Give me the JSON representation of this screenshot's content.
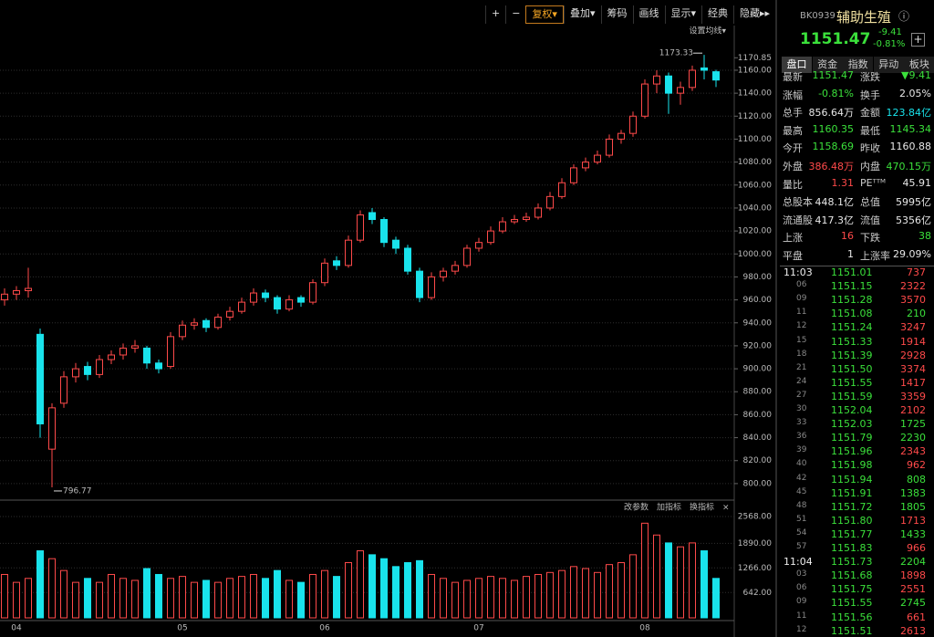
{
  "toolbar": {
    "buttons": [
      "+",
      "−",
      "复权▾",
      "叠加▾",
      "筹码",
      "画线",
      "显示▾",
      "经典",
      "隐藏▸▸"
    ]
  },
  "chart_data": {
    "type": "candlestick",
    "setting_label": "设置均线▾",
    "up_color": "#ff4a4a",
    "down_color": "#19e3ec",
    "max_label": "1173.33",
    "min_label": "796.77",
    "categories": [
      null,
      "04",
      null,
      null,
      null,
      null,
      null,
      null,
      null,
      null,
      null,
      null,
      null,
      null,
      null,
      "05",
      null,
      null,
      null,
      null,
      null,
      null,
      null,
      null,
      null,
      null,
      null,
      "06",
      null,
      null,
      null,
      null,
      null,
      null,
      null,
      null,
      null,
      null,
      null,
      null,
      "07",
      null,
      null,
      null,
      null,
      null,
      null,
      null,
      null,
      null,
      null,
      null,
      null,
      null,
      "08",
      null,
      null,
      null,
      null,
      null,
      null
    ],
    "candles": [
      [
        960,
        970,
        955,
        965
      ],
      [
        965,
        972,
        960,
        968
      ],
      [
        968,
        988,
        962,
        970
      ],
      [
        930,
        935,
        840,
        852
      ],
      [
        830,
        870,
        796.77,
        866
      ],
      [
        870,
        898,
        866,
        893
      ],
      [
        893,
        905,
        888,
        900
      ],
      [
        902,
        906,
        890,
        895
      ],
      [
        895,
        912,
        892,
        908
      ],
      [
        908,
        916,
        904,
        912
      ],
      [
        912,
        922,
        908,
        918
      ],
      [
        918,
        925,
        914,
        920
      ],
      [
        918,
        920,
        900,
        905
      ],
      [
        905,
        908,
        896,
        900
      ],
      [
        902,
        932,
        900,
        928
      ],
      [
        928,
        942,
        925,
        938
      ],
      [
        938,
        944,
        934,
        940
      ],
      [
        942,
        944,
        932,
        936
      ],
      [
        936,
        948,
        934,
        945
      ],
      [
        945,
        954,
        942,
        950
      ],
      [
        950,
        962,
        948,
        958
      ],
      [
        958,
        970,
        955,
        966
      ],
      [
        966,
        969,
        958,
        962
      ],
      [
        962,
        964,
        948,
        952
      ],
      [
        952,
        964,
        950,
        960
      ],
      [
        962,
        964,
        954,
        958
      ],
      [
        958,
        978,
        956,
        975
      ],
      [
        975,
        996,
        972,
        992
      ],
      [
        994,
        998,
        986,
        990
      ],
      [
        990,
        1016,
        988,
        1012
      ],
      [
        1012,
        1038,
        1010,
        1034
      ],
      [
        1036,
        1040,
        1026,
        1030
      ],
      [
        1030,
        1032,
        1006,
        1010
      ],
      [
        1012,
        1015,
        1000,
        1005
      ],
      [
        1005,
        1008,
        982,
        985
      ],
      [
        985,
        988,
        958,
        962
      ],
      [
        962,
        984,
        960,
        980
      ],
      [
        980,
        988,
        976,
        985
      ],
      [
        985,
        994,
        982,
        990
      ],
      [
        990,
        1008,
        988,
        1005
      ],
      [
        1005,
        1014,
        1002,
        1010
      ],
      [
        1010,
        1024,
        1008,
        1020
      ],
      [
        1020,
        1032,
        1018,
        1028
      ],
      [
        1028,
        1034,
        1026,
        1030
      ],
      [
        1030,
        1036,
        1028,
        1032
      ],
      [
        1032,
        1044,
        1030,
        1040
      ],
      [
        1040,
        1054,
        1038,
        1050
      ],
      [
        1050,
        1066,
        1048,
        1062
      ],
      [
        1062,
        1078,
        1060,
        1075
      ],
      [
        1075,
        1084,
        1072,
        1080
      ],
      [
        1080,
        1090,
        1078,
        1086
      ],
      [
        1086,
        1104,
        1084,
        1100
      ],
      [
        1100,
        1108,
        1096,
        1105
      ],
      [
        1105,
        1124,
        1102,
        1120
      ],
      [
        1120,
        1152,
        1118,
        1148
      ],
      [
        1148,
        1160,
        1140,
        1155
      ],
      [
        1155,
        1158,
        1122,
        1140
      ],
      [
        1140,
        1150,
        1130,
        1145
      ],
      [
        1145,
        1164,
        1142,
        1160
      ],
      [
        1162,
        1173.33,
        1152,
        1160
      ],
      [
        1158.69,
        1160.35,
        1145.34,
        1151.47
      ]
    ],
    "ylim": [
      788,
      1185.4
    ],
    "yticks": [
      {
        "value": 800,
        "label": "800.00"
      },
      {
        "value": 820,
        "label": "820.00"
      },
      {
        "value": 840,
        "label": "840.00"
      },
      {
        "value": 860,
        "label": "860.00"
      },
      {
        "value": 880,
        "label": "880.00"
      },
      {
        "value": 900,
        "label": "900.00"
      },
      {
        "value": 920,
        "label": "920.00"
      },
      {
        "value": 940,
        "label": "940.00"
      },
      {
        "value": 960,
        "label": "960.00"
      },
      {
        "value": 980,
        "label": "980.00"
      },
      {
        "value": 1000,
        "label": "1000.00"
      },
      {
        "value": 1020,
        "label": "1020.00"
      },
      {
        "value": 1040,
        "label": "1040.00"
      },
      {
        "value": 1060,
        "label": "1060.00"
      },
      {
        "value": 1080,
        "label": "1080.00"
      },
      {
        "value": 1100,
        "label": "1100.00"
      },
      {
        "value": 1120,
        "label": "1120.00"
      },
      {
        "value": 1140,
        "label": "1140.00"
      },
      {
        "value": 1160,
        "label": "1160.00"
      },
      1170.85
    ],
    "grid": true,
    "volume": {
      "buttons": [
        "改参数",
        "加指标",
        "换指标",
        "×"
      ],
      "ylim": [
        0,
        2708
      ],
      "yticks": [
        {
          "value": 642,
          "label": "642.00"
        },
        {
          "value": 1266,
          "label": "1266.00"
        },
        {
          "value": 1890,
          "label": "1890.00"
        },
        {
          "value": 2568,
          "label": "2568.00"
        }
      ],
      "values": [
        1100,
        900,
        1000,
        1700,
        1500,
        1200,
        900,
        1000,
        900,
        1100,
        1000,
        950,
        1250,
        1100,
        1000,
        1050,
        900,
        950,
        900,
        1000,
        1050,
        1100,
        1000,
        1200,
        950,
        900,
        1100,
        1200,
        1050,
        1400,
        1700,
        1600,
        1500,
        1300,
        1400,
        1450,
        1100,
        1000,
        900,
        950,
        1000,
        1050,
        1000,
        950,
        1050,
        1100,
        1150,
        1200,
        1300,
        1250,
        1150,
        1350,
        1400,
        1600,
        2400,
        2100,
        1900,
        1800,
        1900,
        1700,
        1000
      ]
    }
  },
  "quote": {
    "code": "BK0939",
    "name": "辅助生殖",
    "info": "ⓘ",
    "price": "1151.47",
    "change": "-9.41",
    "pct": "-0.81%",
    "add": "+",
    "tabs": [
      "盘口",
      "资金",
      "指数",
      "异动",
      "板块"
    ],
    "stats": [
      [
        {
          "label": "最新",
          "value": "1151.47",
          "color": "#3be03b"
        },
        {
          "label": "涨跌",
          "value": "▼9.41",
          "color": "#3be03b"
        }
      ],
      [
        {
          "label": "涨幅",
          "value": "-0.81%",
          "color": "#3be03b"
        },
        {
          "label": "换手",
          "value": "2.05%",
          "color": "#e8e8e8"
        }
      ],
      [
        {
          "label": "总手",
          "value": "856.64万",
          "color": "#e8e8e8"
        },
        {
          "label": "金额",
          "value": "123.84亿",
          "color": "#19e3ec"
        }
      ],
      [
        {
          "label": "最高",
          "value": "1160.35",
          "color": "#3be03b"
        },
        {
          "label": "最低",
          "value": "1145.34",
          "color": "#3be03b"
        }
      ],
      [
        {
          "label": "今开",
          "value": "1158.69",
          "color": "#3be03b"
        },
        {
          "label": "昨收",
          "value": "1160.88",
          "color": "#e8e8e8"
        }
      ],
      [
        {
          "label": "外盘",
          "value": "386.48万",
          "color": "#ff4a4a"
        },
        {
          "label": "内盘",
          "value": "470.15万",
          "color": "#3be03b"
        }
      ],
      [
        {
          "label": "量比",
          "value": "1.31",
          "color": "#ff4a4a"
        },
        {
          "label": "PEᵀᵀᴹ",
          "value": "45.91",
          "color": "#e8e8e8"
        }
      ],
      [
        {
          "label": "总股本",
          "value": "448.1亿",
          "color": "#e8e8e8"
        },
        {
          "label": "总值",
          "value": "5995亿",
          "color": "#e8e8e8"
        }
      ],
      [
        {
          "label": "流通股",
          "value": "417.3亿",
          "color": "#e8e8e8"
        },
        {
          "label": "流值",
          "value": "5356亿",
          "color": "#e8e8e8"
        }
      ],
      [
        {
          "label": "上涨",
          "value": "16",
          "color": "#ff4a4a"
        },
        {
          "label": "下跌",
          "value": "38",
          "color": "#3be03b"
        }
      ],
      [
        {
          "label": "平盘",
          "value": "1",
          "color": "#e8e8e8"
        },
        {
          "label": "上涨率",
          "value": "29.09%",
          "color": "#e8e8e8"
        }
      ]
    ],
    "ticks": [
      {
        "time": "11:03",
        "price": "1151.01",
        "volume": "737",
        "color": "#ff4a4a"
      },
      {
        "time": "06",
        "price": "1151.15",
        "volume": "2322",
        "color": "#ff4a4a"
      },
      {
        "time": "09",
        "price": "1151.28",
        "volume": "3570",
        "color": "#ff4a4a"
      },
      {
        "time": "11",
        "price": "1151.08",
        "volume": "210",
        "color": "#3be03b"
      },
      {
        "time": "12",
        "price": "1151.24",
        "volume": "3247",
        "color": "#ff4a4a"
      },
      {
        "time": "15",
        "price": "1151.33",
        "volume": "1914",
        "color": "#ff4a4a"
      },
      {
        "time": "18",
        "price": "1151.39",
        "volume": "2928",
        "color": "#ff4a4a"
      },
      {
        "time": "21",
        "price": "1151.50",
        "volume": "3374",
        "color": "#ff4a4a"
      },
      {
        "time": "24",
        "price": "1151.55",
        "volume": "1417",
        "color": "#ff4a4a"
      },
      {
        "time": "27",
        "price": "1151.59",
        "volume": "3359",
        "color": "#ff4a4a"
      },
      {
        "time": "30",
        "price": "1152.04",
        "volume": "2102",
        "color": "#ff4a4a"
      },
      {
        "time": "33",
        "price": "1152.03",
        "volume": "1725",
        "color": "#3be03b"
      },
      {
        "time": "36",
        "price": "1151.79",
        "volume": "2230",
        "color": "#3be03b"
      },
      {
        "time": "39",
        "price": "1151.96",
        "volume": "2343",
        "color": "#ff4a4a"
      },
      {
        "time": "40",
        "price": "1151.98",
        "volume": "962",
        "color": "#ff4a4a"
      },
      {
        "time": "42",
        "price": "1151.94",
        "volume": "808",
        "color": "#3be03b"
      },
      {
        "time": "45",
        "price": "1151.91",
        "volume": "1383",
        "color": "#3be03b"
      },
      {
        "time": "48",
        "price": "1151.72",
        "volume": "1805",
        "color": "#3be03b"
      },
      {
        "time": "51",
        "price": "1151.80",
        "volume": "1713",
        "color": "#ff4a4a"
      },
      {
        "time": "54",
        "price": "1151.77",
        "volume": "1433",
        "color": "#3be03b"
      },
      {
        "time": "57",
        "price": "1151.83",
        "volume": "966",
        "color": "#ff4a4a"
      },
      {
        "time": "11:04",
        "price": "1151.73",
        "volume": "2204",
        "color": "#3be03b"
      },
      {
        "time": "03",
        "price": "1151.68",
        "volume": "1898",
        "color": "#ff4a4a"
      },
      {
        "time": "06",
        "price": "1151.75",
        "volume": "2551",
        "color": "#ff4a4a"
      },
      {
        "time": "09",
        "price": "1151.55",
        "volume": "2745",
        "color": "#3be03b"
      },
      {
        "time": "11",
        "price": "1151.56",
        "volume": "661",
        "color": "#ff4a4a"
      },
      {
        "time": "12",
        "price": "1151.51",
        "volume": "2613",
        "color": "#ff4a4a"
      }
    ]
  }
}
